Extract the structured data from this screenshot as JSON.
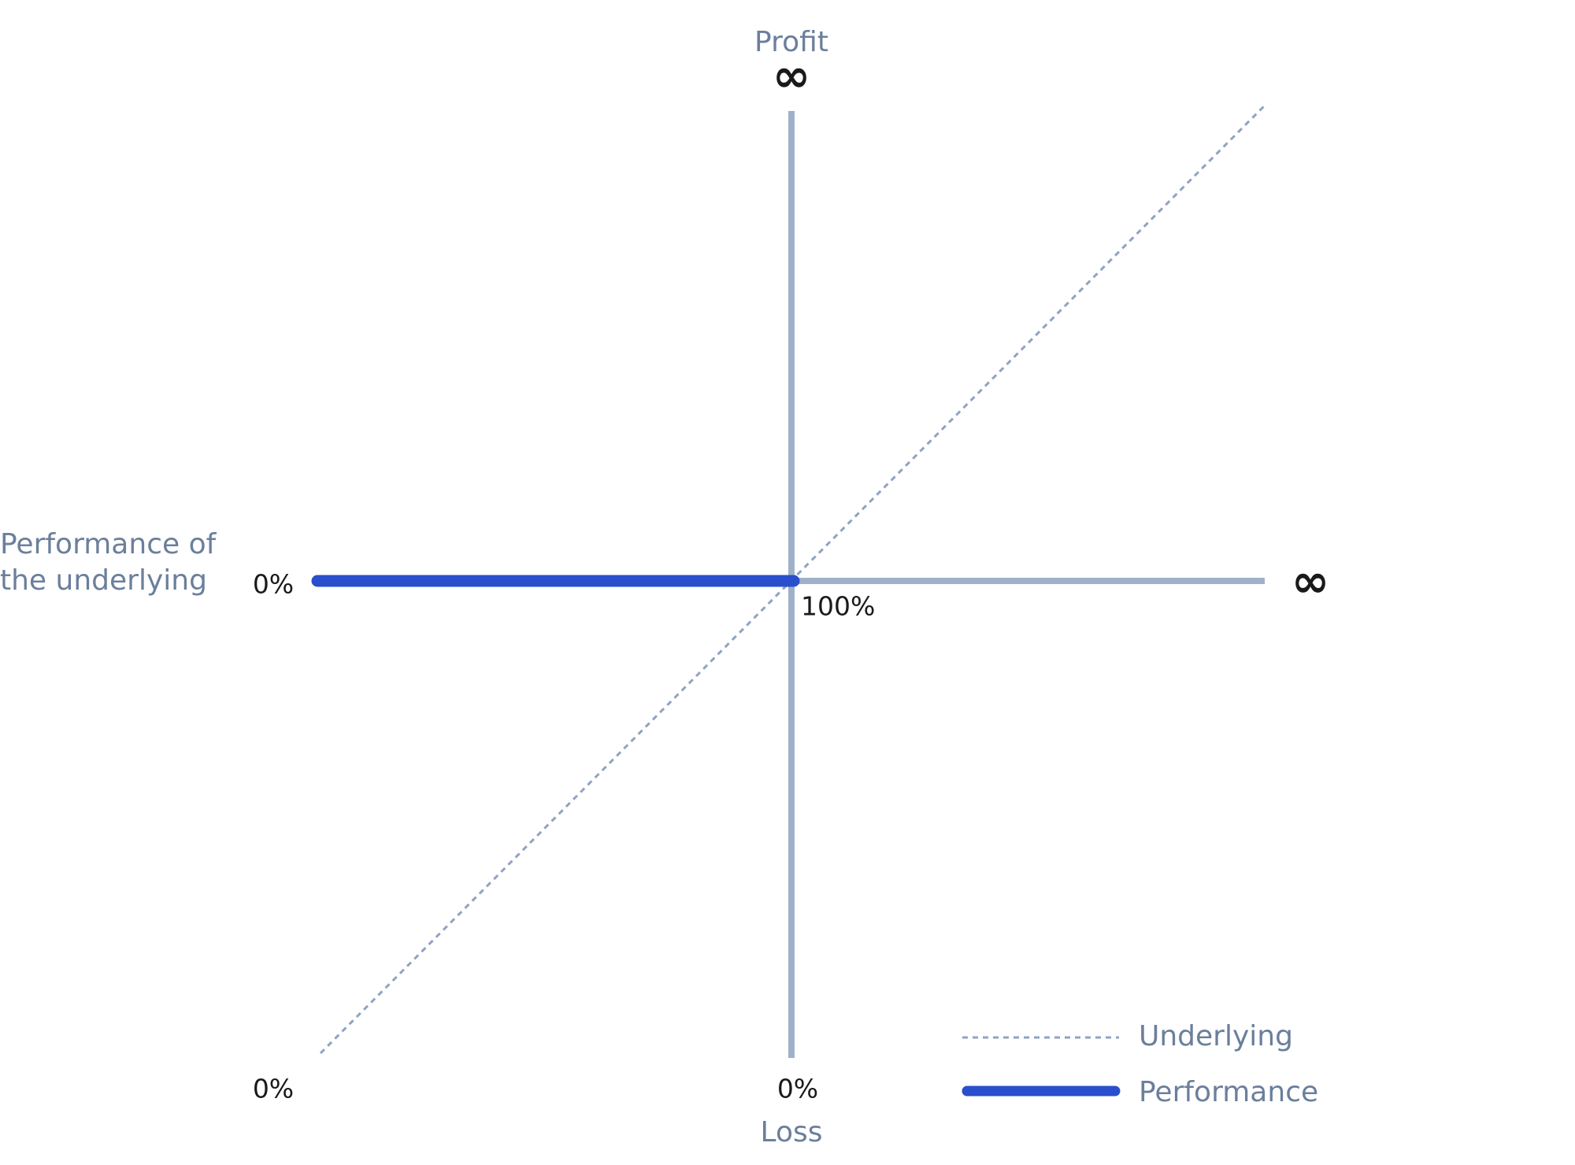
{
  "diagram": {
    "y_axis": {
      "label_top": "Profit",
      "top": "∞",
      "label_bottom": "Loss",
      "bottom": "0%"
    },
    "x_axis": {
      "label": [
        "Performance of",
        "the underlying"
      ],
      "left": "0%",
      "origin": "100%",
      "right": "∞",
      "corner": "0%"
    },
    "legend": [
      {
        "label": "Underlying"
      },
      {
        "label": "Performance"
      }
    ]
  }
}
